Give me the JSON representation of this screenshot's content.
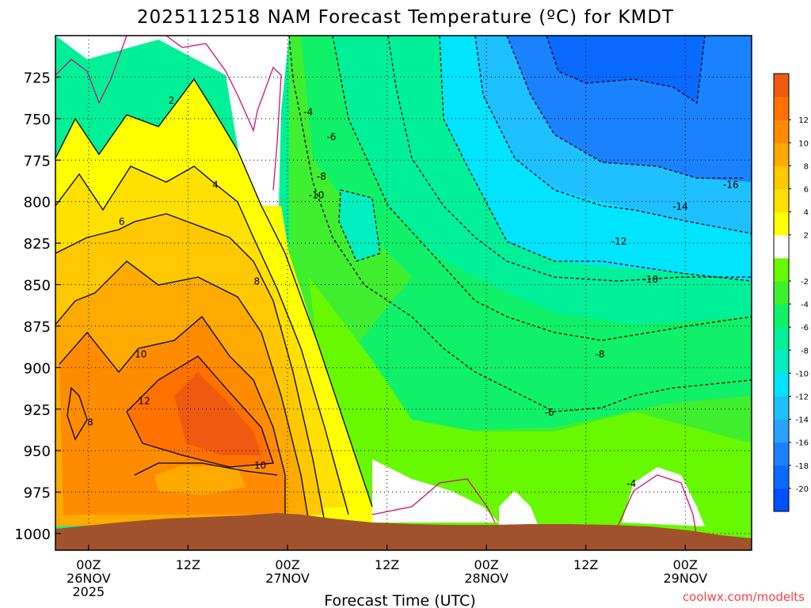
{
  "chart_data": {
    "type": "heatmap",
    "title": "2025112518 NAM Forecast Temperature (ºC) for KMDT",
    "xlabel": "Forecast Time (UTC)",
    "ylabel": "",
    "credit": "coolwx.com/modelts",
    "x_range_hours": [
      -4,
      80
    ],
    "y_range_hpa": [
      700,
      1010
    ],
    "y_ticks": [
      "725",
      "750",
      "775",
      "800",
      "825",
      "850",
      "875",
      "900",
      "925",
      "950",
      "975",
      "1000"
    ],
    "x_ticks": [
      {
        "hour": 0,
        "lines": [
          "00Z",
          "26NOV",
          "2025"
        ]
      },
      {
        "hour": 12,
        "lines": [
          "12Z"
        ]
      },
      {
        "hour": 24,
        "lines": [
          "00Z",
          "27NOV"
        ]
      },
      {
        "hour": 36,
        "lines": [
          "12Z"
        ]
      },
      {
        "hour": 48,
        "lines": [
          "00Z",
          "28NOV"
        ]
      },
      {
        "hour": 60,
        "lines": [
          "12Z"
        ]
      },
      {
        "hour": 72,
        "lines": [
          "00Z",
          "29NOV"
        ]
      }
    ],
    "colorbar": [
      {
        "label": "",
        "color": "#0050ff"
      },
      {
        "label": "-20",
        "color": "#0a6aff"
      },
      {
        "label": "-18",
        "color": "#1a82ff"
      },
      {
        "label": "-16",
        "color": "#2aa0ff"
      },
      {
        "label": "-14",
        "color": "#1fc0ff"
      },
      {
        "label": "-12",
        "color": "#00e4ff"
      },
      {
        "label": "-10",
        "color": "#00eec0"
      },
      {
        "label": "-8",
        "color": "#00f098"
      },
      {
        "label": "-6",
        "color": "#10f068"
      },
      {
        "label": "-4",
        "color": "#40ee30"
      },
      {
        "label": "-2",
        "color": "#68f800"
      },
      {
        "label": "",
        "color": "#ffffff"
      },
      {
        "label": "2",
        "color": "#ffff00"
      },
      {
        "label": "4",
        "color": "#ffe000"
      },
      {
        "label": "6",
        "color": "#ffc800"
      },
      {
        "label": "8",
        "color": "#ffaa00"
      },
      {
        "label": "10",
        "color": "#ff8c00"
      },
      {
        "label": "12",
        "color": "#ff7200"
      },
      {
        "label": "",
        "color": "#ee5a10"
      }
    ],
    "contour_labels": [
      {
        "text": "2",
        "t": 10.0,
        "p": 739
      },
      {
        "text": "4",
        "t": 15.3,
        "p": 790
      },
      {
        "text": "6",
        "t": 4.0,
        "p": 812
      },
      {
        "text": "8",
        "t": 20.3,
        "p": 848
      },
      {
        "text": "10",
        "t": 6.3,
        "p": 892
      },
      {
        "text": "12",
        "t": 6.7,
        "p": 920
      },
      {
        "text": "10",
        "t": 20.7,
        "p": 959
      },
      {
        "text": "8",
        "t": 0.2,
        "p": 933
      },
      {
        "text": "-4",
        "t": 26.5,
        "p": 746
      },
      {
        "text": "-6",
        "t": 29.3,
        "p": 761
      },
      {
        "text": "-8",
        "t": 28.1,
        "p": 785
      },
      {
        "text": "-10",
        "t": 27.5,
        "p": 796
      },
      {
        "text": "-16",
        "t": 77.5,
        "p": 790
      },
      {
        "text": "-14",
        "t": 71.4,
        "p": 803
      },
      {
        "text": "-12",
        "t": 64.0,
        "p": 824
      },
      {
        "text": "-10",
        "t": 67.8,
        "p": 847
      },
      {
        "text": "-8",
        "t": 61.7,
        "p": 892
      },
      {
        "text": "-6",
        "t": 55.6,
        "p": 927
      },
      {
        "text": "-4",
        "t": 65.5,
        "p": 970
      }
    ]
  }
}
